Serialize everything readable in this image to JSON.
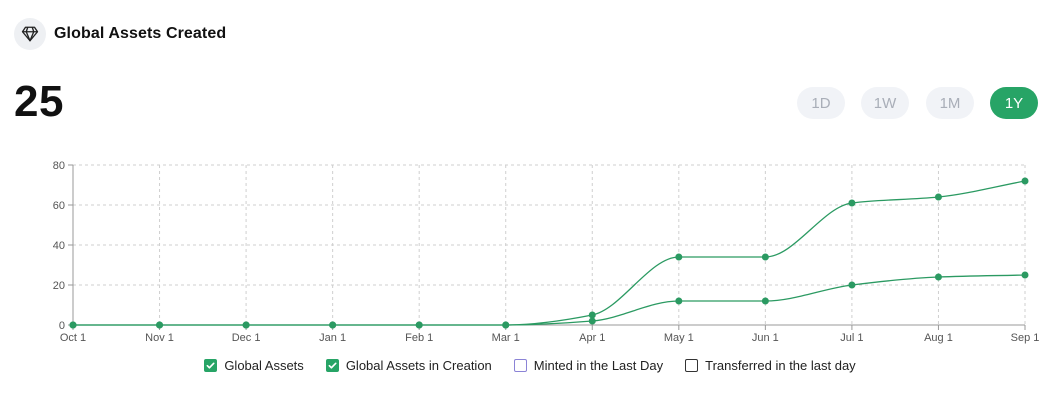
{
  "header": {
    "title": "Global Assets Created",
    "icon": "diamond-icon"
  },
  "summary": {
    "value": "25"
  },
  "range_buttons": [
    {
      "label": "1D",
      "active": false
    },
    {
      "label": "1W",
      "active": false
    },
    {
      "label": "1M",
      "active": false
    },
    {
      "label": "1Y",
      "active": true
    }
  ],
  "colors": {
    "accent": "#27a466",
    "line": "#2b9a62",
    "minted": "#8b83d6",
    "transferred": "#333333",
    "grid": "#cfcfcf"
  },
  "legend": [
    {
      "label": "Global Assets",
      "checked": true,
      "color": "#27a466"
    },
    {
      "label": "Global Assets in Creation",
      "checked": true,
      "color": "#27a466"
    },
    {
      "label": "Minted in the Last Day",
      "checked": false,
      "color": "#8b83d6"
    },
    {
      "label": "Transferred in the last day",
      "checked": false,
      "color": "#333333"
    }
  ],
  "chart_data": {
    "type": "line",
    "categories": [
      "Oct 1",
      "Nov 1",
      "Dec 1",
      "Jan 1",
      "Feb 1",
      "Mar 1",
      "Apr 1",
      "May 1",
      "Jun 1",
      "Jul 1",
      "Aug 1",
      "Sep 1"
    ],
    "series": [
      {
        "name": "Global Assets",
        "values": [
          0,
          0,
          0,
          0,
          0,
          0,
          5,
          34,
          34,
          61,
          64,
          72
        ]
      },
      {
        "name": "Global Assets in Creation",
        "values": [
          0,
          0,
          0,
          0,
          0,
          0,
          2,
          12,
          12,
          20,
          24,
          25
        ]
      }
    ],
    "ylim": [
      0,
      80
    ],
    "yticks": [
      0,
      20,
      40,
      60,
      80
    ],
    "grid": true,
    "legend_position": "bottom"
  }
}
